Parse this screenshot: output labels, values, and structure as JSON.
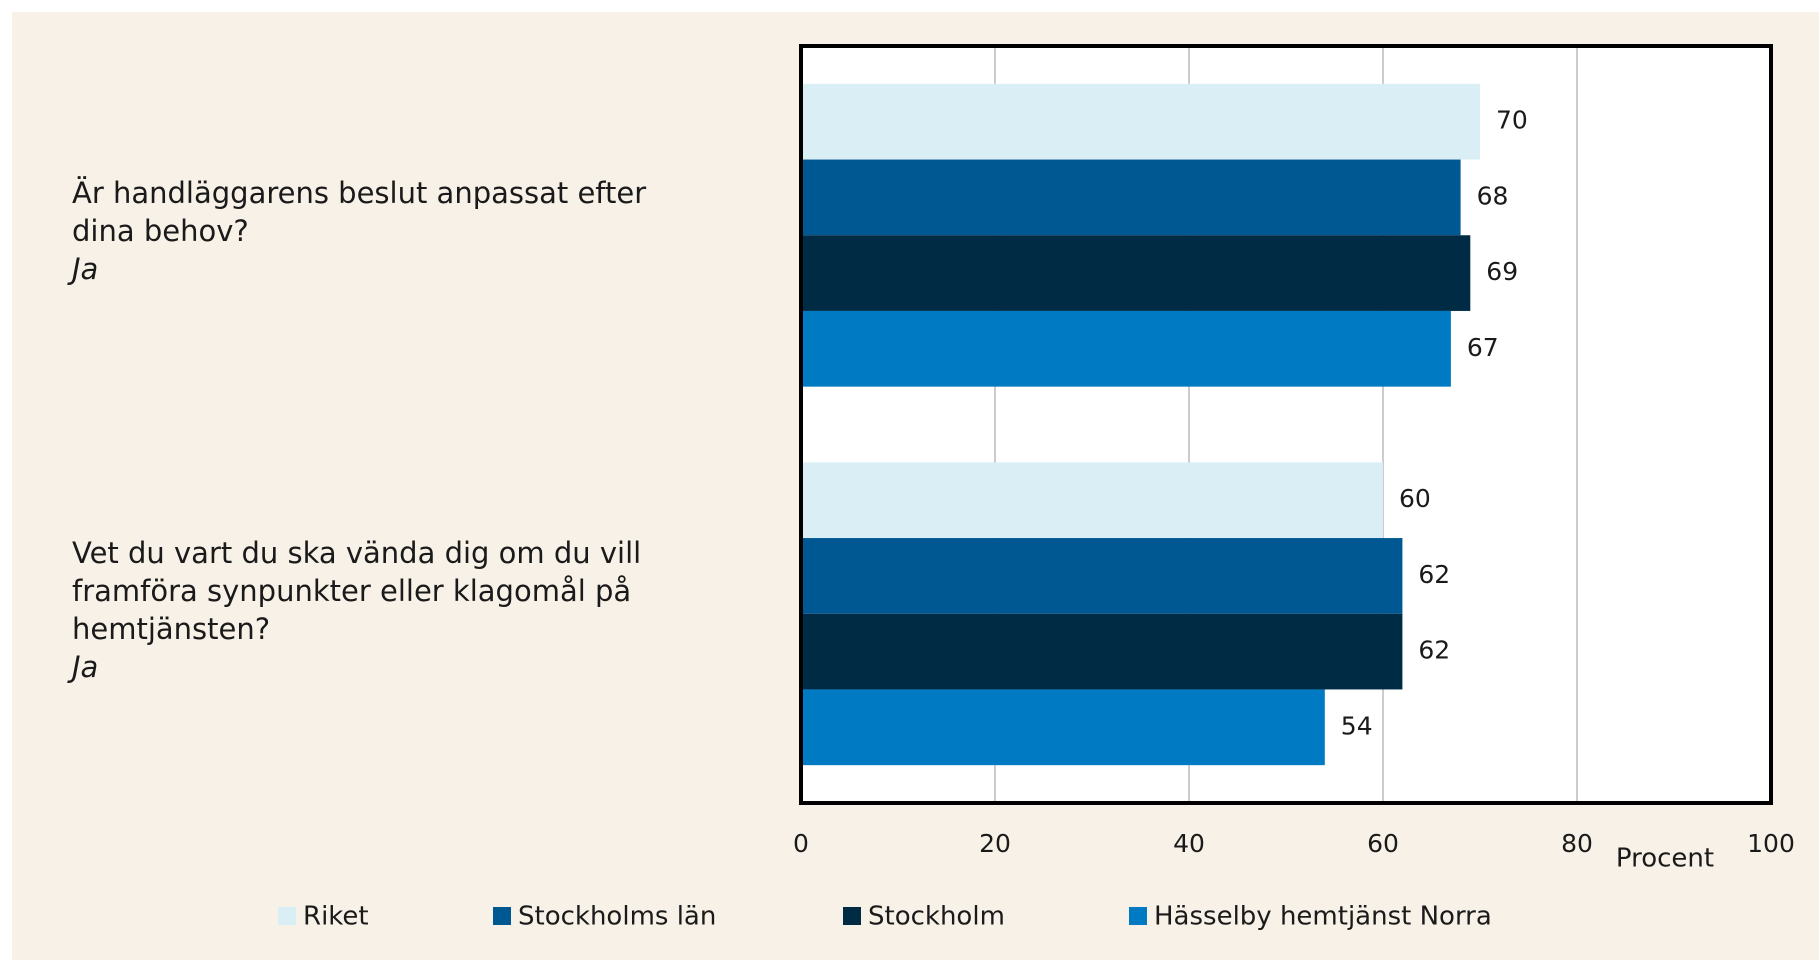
{
  "chart_data": {
    "type": "barh",
    "categories": [
      "Är handläggarens beslut anpassat efter dina behov?",
      "Vet du vart du ska vända dig om du vill framföra synpunkter eller klagomål på hemtjänsten?"
    ],
    "category_sublabels": [
      "Ja",
      "Ja"
    ],
    "series": [
      {
        "name": "Riket",
        "color": "#daeef6",
        "values": [
          70,
          60
        ]
      },
      {
        "name": "Stockholms län",
        "color": "#005893",
        "values": [
          68,
          62
        ]
      },
      {
        "name": "Stockholm",
        "color": "#002b45",
        "values": [
          69,
          62
        ]
      },
      {
        "name": "Hässelby hemtjänst Norra",
        "color": "#007ac3",
        "values": [
          67,
          54
        ]
      }
    ],
    "xlim": [
      0,
      100
    ],
    "xticks": [
      0,
      20,
      40,
      60,
      80,
      100
    ],
    "xlabel": "Procent",
    "grid": true,
    "legend": "bottom"
  }
}
